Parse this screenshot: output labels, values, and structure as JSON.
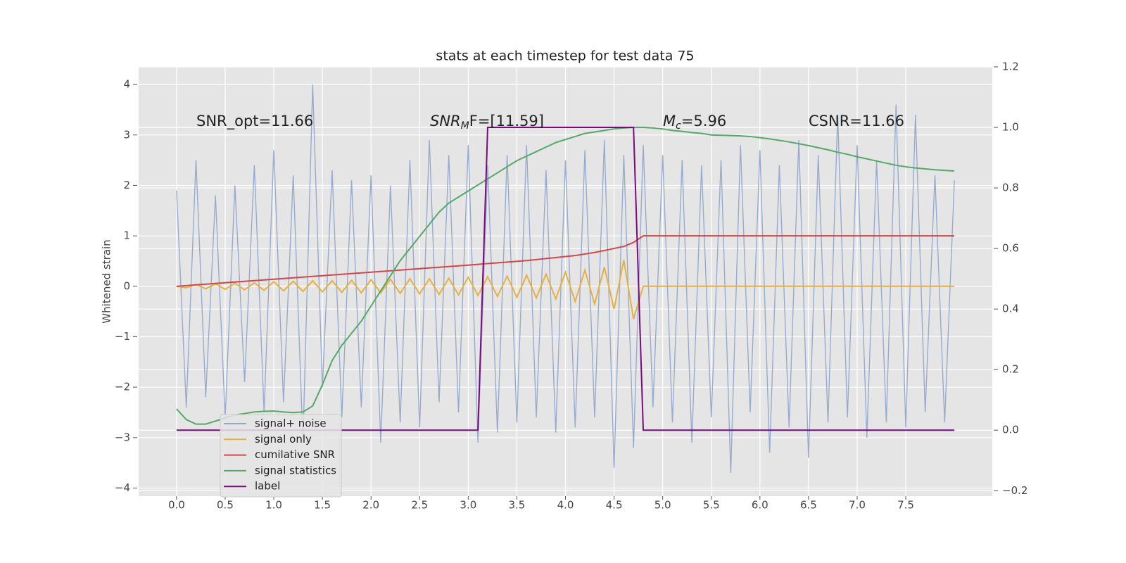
{
  "chart_data": {
    "type": "line",
    "title": "stats at each timestep for test data 75",
    "y_label": "Whitened strain",
    "annotations": [
      "SNR_opt=11.66",
      {
        "main": "SNR",
        "sub": "M",
        "tail": "F=[11.59]"
      },
      {
        "main": "M",
        "sub": "c",
        "tail": "=5.96"
      },
      "CSNR=11.66"
    ],
    "x": [
      0,
      0.1,
      0.2,
      0.3,
      0.4,
      0.5,
      0.6,
      0.7,
      0.8,
      0.9,
      1.0,
      1.1,
      1.2,
      1.3,
      1.4,
      1.5,
      1.6,
      1.7,
      1.8,
      1.9,
      2.0,
      2.1,
      2.2,
      2.3,
      2.4,
      2.5,
      2.6,
      2.7,
      2.8,
      2.9,
      3.0,
      3.1,
      3.2,
      3.3,
      3.4,
      3.5,
      3.6,
      3.7,
      3.8,
      3.9,
      4.0,
      4.1,
      4.2,
      4.3,
      4.4,
      4.5,
      4.6,
      4.7,
      4.8,
      4.9,
      5.0,
      5.1,
      5.2,
      5.3,
      5.4,
      5.5,
      5.6,
      5.7,
      5.8,
      5.9,
      6.0,
      6.1,
      6.2,
      6.3,
      6.4,
      6.5,
      6.6,
      6.7,
      6.8,
      6.9,
      7.0,
      7.1,
      7.2,
      7.3,
      7.4,
      7.5,
      7.6,
      7.7,
      7.8,
      7.9,
      8.0
    ],
    "series": [
      {
        "name": "signal+ noise",
        "color": "#92a8cf",
        "values": [
          1.9,
          -2.4,
          2.5,
          -2.2,
          1.8,
          -2.6,
          2.0,
          -1.9,
          2.4,
          -2.5,
          2.7,
          -2.3,
          2.2,
          -3.1,
          4.0,
          -2.0,
          2.3,
          -2.6,
          2.1,
          -2.4,
          2.2,
          -3.1,
          2.0,
          -2.7,
          2.5,
          -2.8,
          2.9,
          -2.3,
          2.6,
          -2.5,
          2.8,
          -3.1,
          2.4,
          -2.9,
          2.6,
          -2.7,
          2.8,
          -2.6,
          2.3,
          -2.9,
          2.5,
          -2.8,
          2.7,
          -2.6,
          2.9,
          -3.6,
          2.6,
          -3.2,
          2.8,
          -2.4,
          2.6,
          -2.7,
          2.5,
          -3.1,
          2.4,
          -2.6,
          2.5,
          -3.7,
          2.8,
          -2.5,
          2.7,
          -3.3,
          2.4,
          -2.8,
          2.9,
          -3.4,
          2.6,
          -2.7,
          3.4,
          -2.6,
          2.8,
          -3.0,
          2.5,
          -2.7,
          3.6,
          -2.8,
          3.4,
          -2.5,
          2.2,
          -2.7,
          2.1
        ]
      },
      {
        "name": "signal only",
        "color": "#e8b040",
        "values": [
          0,
          -0.03,
          0.04,
          -0.05,
          0.05,
          -0.06,
          0.06,
          -0.07,
          0.07,
          -0.08,
          0.09,
          -0.09,
          0.1,
          -0.1,
          0.11,
          -0.11,
          0.11,
          -0.12,
          0.12,
          -0.13,
          0.13,
          -0.13,
          0.14,
          -0.14,
          0.15,
          -0.15,
          0.15,
          -0.16,
          0.16,
          -0.17,
          0.18,
          -0.18,
          0.19,
          -0.2,
          0.2,
          -0.22,
          0.22,
          -0.23,
          0.24,
          -0.25,
          0.28,
          -0.3,
          0.32,
          -0.35,
          0.38,
          -0.45,
          0.52,
          -0.65,
          0,
          0,
          0,
          0,
          0,
          0,
          0,
          0,
          0,
          0,
          0,
          0,
          0,
          0,
          0,
          0,
          0,
          0,
          0,
          0,
          0,
          0,
          0,
          0,
          0,
          0,
          0,
          0,
          0,
          0,
          0,
          0,
          0
        ]
      },
      {
        "name": "cumilative SNR",
        "color": "#d0474a",
        "values": [
          0,
          0.014,
          0.028,
          0.042,
          0.056,
          0.07,
          0.084,
          0.098,
          0.112,
          0.126,
          0.14,
          0.154,
          0.168,
          0.182,
          0.196,
          0.21,
          0.224,
          0.238,
          0.252,
          0.266,
          0.28,
          0.294,
          0.308,
          0.322,
          0.336,
          0.35,
          0.364,
          0.378,
          0.392,
          0.406,
          0.42,
          0.435,
          0.45,
          0.465,
          0.48,
          0.495,
          0.51,
          0.53,
          0.55,
          0.57,
          0.59,
          0.61,
          0.64,
          0.67,
          0.71,
          0.75,
          0.79,
          0.87,
          1.0,
          1.0,
          1,
          1,
          1,
          1,
          1,
          1,
          1,
          1,
          1,
          1,
          1,
          1,
          1,
          1,
          1,
          1,
          1,
          1,
          1,
          1,
          1,
          1,
          1,
          1,
          1,
          1,
          1,
          1,
          1,
          1,
          1
        ]
      },
      {
        "name": "signal statistics",
        "color": "#55a868",
        "axis": "y2",
        "values": [
          0.07,
          0.035,
          0.02,
          0.02,
          0.03,
          0.04,
          0.05,
          0.055,
          0.06,
          0.062,
          0.063,
          0.06,
          0.058,
          0.06,
          0.08,
          0.15,
          0.23,
          0.28,
          0.32,
          0.36,
          0.41,
          0.46,
          0.51,
          0.56,
          0.6,
          0.64,
          0.68,
          0.72,
          0.75,
          0.77,
          0.79,
          0.81,
          0.83,
          0.85,
          0.87,
          0.89,
          0.905,
          0.92,
          0.935,
          0.95,
          0.96,
          0.97,
          0.98,
          0.985,
          0.99,
          0.995,
          0.998,
          1.0,
          1.0,
          0.998,
          0.995,
          0.99,
          0.987,
          0.983,
          0.98,
          0.975,
          0.974,
          0.973,
          0.972,
          0.97,
          0.966,
          0.962,
          0.957,
          0.952,
          0.946,
          0.94,
          0.933,
          0.926,
          0.918,
          0.911,
          0.903,
          0.896,
          0.889,
          0.882,
          0.875,
          0.87,
          0.866,
          0.863,
          0.86,
          0.858,
          0.856
        ]
      },
      {
        "name": "label",
        "color": "#7b0a7e",
        "axis": "y2",
        "values": [
          0,
          0,
          0,
          0,
          0,
          0,
          0,
          0,
          0,
          0,
          0,
          0,
          0,
          0,
          0,
          0,
          0,
          0,
          0,
          0,
          0,
          0,
          0,
          0,
          0,
          0,
          0,
          0,
          0,
          0,
          0,
          0,
          1,
          1,
          1,
          1,
          1,
          1,
          1,
          1,
          1,
          1,
          1,
          1,
          1,
          1,
          1,
          1,
          0,
          0,
          0,
          0,
          0,
          0,
          0,
          0,
          0,
          0,
          0,
          0,
          0,
          0,
          0,
          0,
          0,
          0,
          0,
          0,
          0,
          0,
          0,
          0,
          0,
          0,
          0,
          0,
          0,
          0,
          0,
          0,
          0
        ]
      }
    ],
    "xlim": [
      -0.39,
      8.39
    ],
    "ylim": [
      -4.16,
      4.35
    ],
    "y2lim": [
      -0.218,
      1.2
    ],
    "xticks": [
      {
        "value": 0,
        "label": "0.0"
      },
      {
        "value": 0.5,
        "label": "0.5"
      },
      {
        "value": 1,
        "label": "1.0"
      },
      {
        "value": 1.5,
        "label": "1.5"
      },
      {
        "value": 2,
        "label": "2.0"
      },
      {
        "value": 2.5,
        "label": "2.5"
      },
      {
        "value": 3,
        "label": "3.0"
      },
      {
        "value": 3.5,
        "label": "3.5"
      },
      {
        "value": 4,
        "label": "4.0"
      },
      {
        "value": 4.5,
        "label": "4.5"
      },
      {
        "value": 5,
        "label": "5.0"
      },
      {
        "value": 5.5,
        "label": "5.5"
      },
      {
        "value": 6,
        "label": "6.0"
      },
      {
        "value": 6.5,
        "label": "6.5"
      },
      {
        "value": 7,
        "label": "7.0"
      },
      {
        "value": 7.5,
        "label": "7.5"
      }
    ],
    "yticks": [
      {
        "value": -4,
        "label": "−4"
      },
      {
        "value": -3,
        "label": "−3"
      },
      {
        "value": -2,
        "label": "−2"
      },
      {
        "value": -1,
        "label": "−1"
      },
      0,
      1,
      2,
      3,
      4
    ],
    "y2ticks": [
      {
        "value": -0.2,
        "label": "−0.2"
      },
      {
        "value": 0,
        "label": "0.0"
      },
      {
        "value": 0.2,
        "label": "0.2"
      },
      {
        "value": 0.4,
        "label": "0.4"
      },
      {
        "value": 0.6,
        "label": "0.6"
      },
      {
        "value": 0.8,
        "label": "0.8"
      },
      {
        "value": 1.0,
        "label": "1.0"
      },
      {
        "value": 1.2,
        "label": "1.2"
      }
    ],
    "grid": true,
    "legend": "lower left"
  }
}
